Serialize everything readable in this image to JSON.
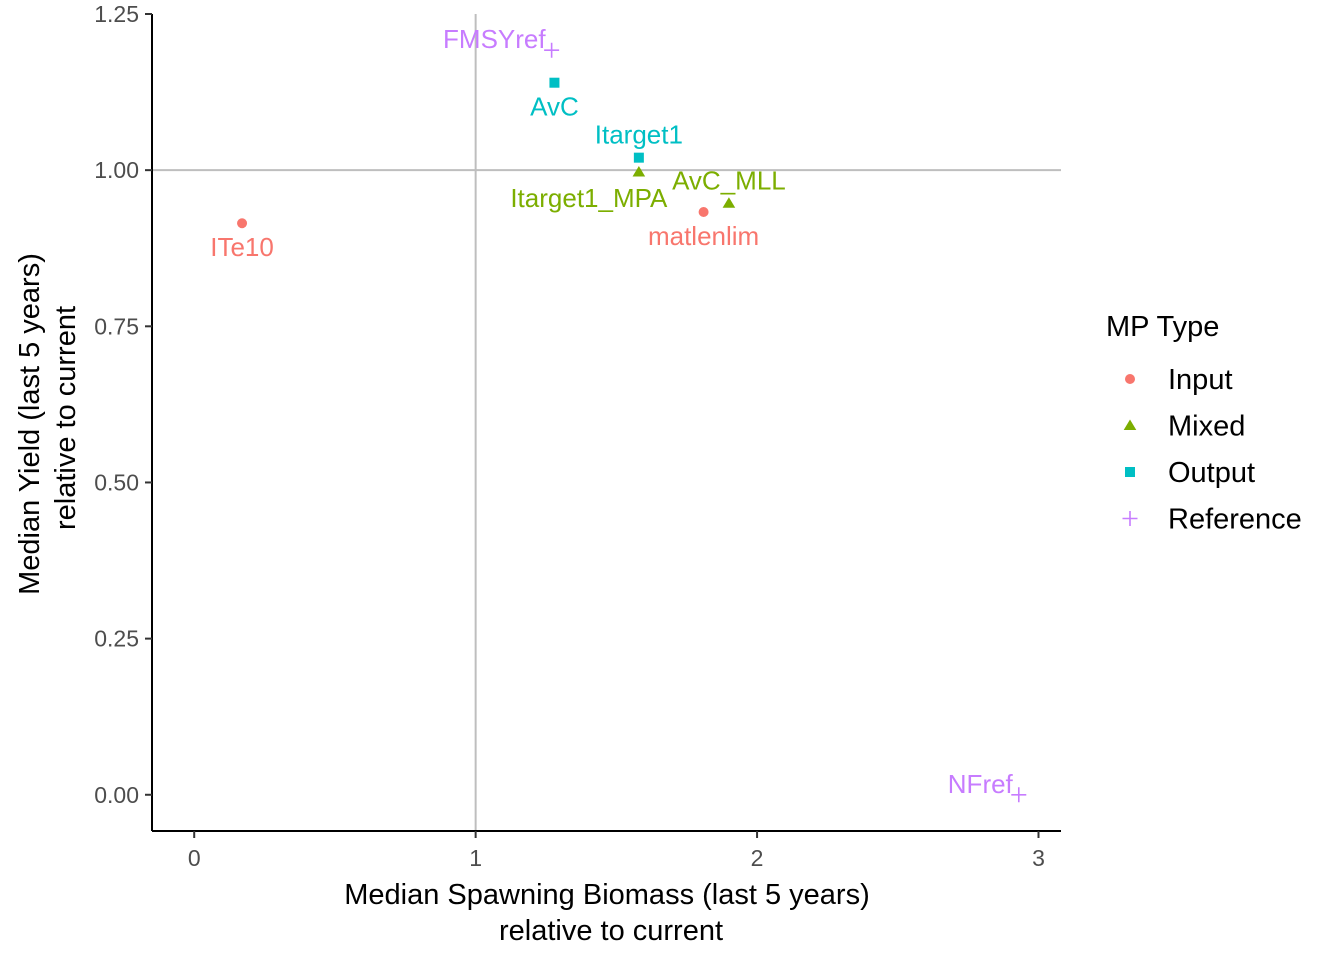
{
  "chart_data": {
    "type": "scatter",
    "xlabel": [
      "Median Spawning Biomass (last 5 years)",
      "relative to current"
    ],
    "ylabel": [
      "Median Yield (last 5 years)",
      "relative to current"
    ],
    "xlim": [
      -0.15,
      3.08
    ],
    "ylim": [
      -0.058,
      1.25
    ],
    "x_ticks": [
      0,
      1,
      2,
      3
    ],
    "x_tick_labels": [
      "0",
      "1",
      "2",
      "3"
    ],
    "y_ticks": [
      0.0,
      0.25,
      0.5,
      0.75,
      1.0,
      1.25
    ],
    "y_tick_labels": [
      "0.00",
      "0.25",
      "0.50",
      "0.75",
      "1.00",
      "1.25"
    ],
    "reference_lines": {
      "x": 1,
      "y": 1
    },
    "grid": false,
    "legend": {
      "title": "MP Type",
      "position": "right",
      "entries": [
        {
          "name": "Input",
          "shape": "circle",
          "color": "#F8766D"
        },
        {
          "name": "Mixed",
          "shape": "triangle",
          "color": "#7CAE00"
        },
        {
          "name": "Output",
          "shape": "square",
          "color": "#00BFC4"
        },
        {
          "name": "Reference",
          "shape": "plus",
          "color": "#C77CFF"
        }
      ]
    },
    "points": [
      {
        "label": "FMSYref",
        "x": 1.27,
        "y": 1.192,
        "type": "Reference",
        "label_pos": "left"
      },
      {
        "label": "AvC",
        "x": 1.28,
        "y": 1.14,
        "type": "Output",
        "label_pos": "below"
      },
      {
        "label": "Itarget1",
        "x": 1.58,
        "y": 1.02,
        "type": "Output",
        "label_pos": "above"
      },
      {
        "label": "Itarget1_MPA",
        "x": 1.58,
        "y": 0.997,
        "type": "Mixed",
        "label_pos": "below-left"
      },
      {
        "label": "AvC_MLL",
        "x": 1.9,
        "y": 0.947,
        "type": "Mixed",
        "label_pos": "above"
      },
      {
        "label": "matlenlim",
        "x": 1.81,
        "y": 0.933,
        "type": "Input",
        "label_pos": "below"
      },
      {
        "label": "ITe10",
        "x": 0.17,
        "y": 0.915,
        "type": "Input",
        "label_pos": "below"
      },
      {
        "label": "NFref",
        "x": 2.93,
        "y": 0.0,
        "type": "Reference",
        "label_pos": "left"
      }
    ]
  }
}
